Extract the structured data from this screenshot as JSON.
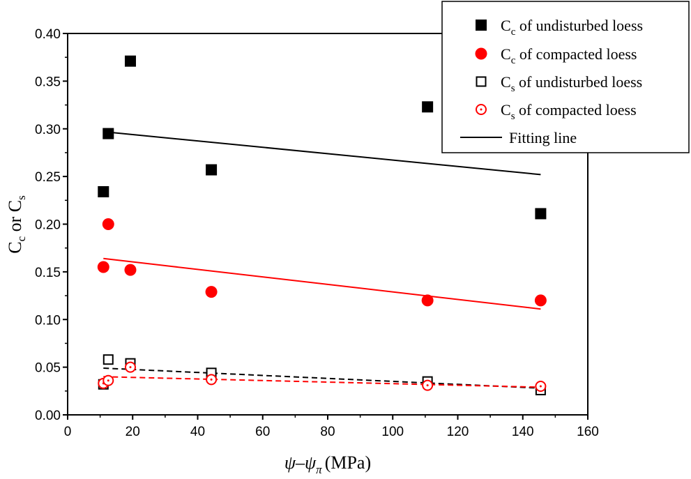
{
  "chart_data": {
    "type": "scatter",
    "xlabel": {
      "main": "ψ–ψ",
      "sub": "π",
      "unit": "(MPa)"
    },
    "ylabel": {
      "c1": "C",
      "s1": "c",
      "mid": " or ",
      "c2": "C",
      "s2": "s"
    },
    "xlim": [
      0,
      160
    ],
    "ylim": [
      0,
      0.4
    ],
    "xticks": [
      "0",
      "20",
      "40",
      "60",
      "80",
      "100",
      "120",
      "140",
      "160"
    ],
    "yticks": [
      "0.00",
      "0.05",
      "0.10",
      "0.15",
      "0.20",
      "0.25",
      "0.30",
      "0.35",
      "0.40"
    ],
    "grid": false,
    "legend_position": "top-right",
    "series": [
      {
        "name": "Cc of undisturbed loess",
        "legend_main": "C",
        "legend_sub": "c",
        "legend_rest": " of undisturbed loess",
        "marker": "filled-square",
        "color": "#000000",
        "x": [
          11.0,
          12.5,
          19.3,
          44.2,
          110.7,
          145.5
        ],
        "y": [
          0.234,
          0.295,
          0.371,
          0.257,
          0.323,
          0.211
        ]
      },
      {
        "name": "Cc of compacted loess",
        "legend_main": "C",
        "legend_sub": "c",
        "legend_rest": " of compacted loess",
        "marker": "filled-circle",
        "color": "#ff0000",
        "x": [
          11.0,
          12.5,
          19.3,
          44.2,
          110.7,
          145.5
        ],
        "y": [
          0.155,
          0.2,
          0.152,
          0.129,
          0.12,
          0.12
        ]
      },
      {
        "name": "Cs of undisturbed loess",
        "legend_main": "C",
        "legend_sub": "s",
        "legend_rest": " of undisturbed loess",
        "marker": "open-square",
        "color": "#000000",
        "x": [
          11.0,
          12.5,
          19.3,
          44.2,
          110.7,
          145.5
        ],
        "y": [
          0.032,
          0.058,
          0.054,
          0.044,
          0.035,
          0.026
        ]
      },
      {
        "name": "Cs of compacted loess",
        "legend_main": "C",
        "legend_sub": "s",
        "legend_rest": " of compacted loess",
        "marker": "open-circle-dot",
        "color": "#ff0000",
        "x": [
          11.0,
          12.5,
          19.3,
          44.2,
          110.7,
          145.5
        ],
        "y": [
          0.033,
          0.036,
          0.05,
          0.037,
          0.031,
          0.03
        ]
      }
    ],
    "fitting_lines": [
      {
        "name": "fit-cc-undisturbed",
        "color": "#000000",
        "style": "solid",
        "x": [
          11.0,
          145.5
        ],
        "y": [
          0.297,
          0.252
        ]
      },
      {
        "name": "fit-cc-compacted",
        "color": "#ff0000",
        "style": "solid",
        "x": [
          11.0,
          145.5
        ],
        "y": [
          0.164,
          0.111
        ]
      },
      {
        "name": "fit-cs-undisturbed",
        "color": "#000000",
        "style": "dashed",
        "x": [
          11.0,
          145.5
        ],
        "y": [
          0.049,
          0.028
        ]
      },
      {
        "name": "fit-cs-compacted",
        "color": "#ff0000",
        "style": "dashed",
        "x": [
          11.0,
          145.5
        ],
        "y": [
          0.04,
          0.029
        ]
      }
    ],
    "legend_fit_label": "Fitting line"
  }
}
